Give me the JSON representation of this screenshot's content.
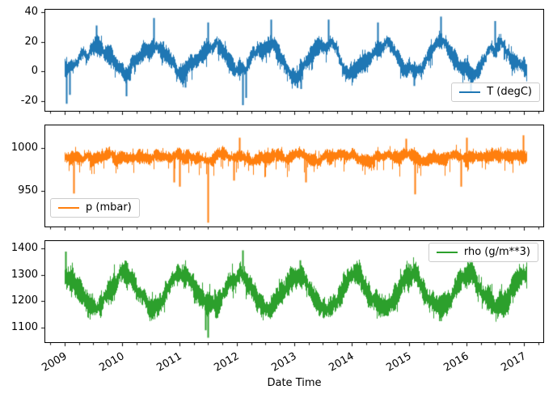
{
  "figure": {
    "background": "#ffffff"
  },
  "x_axis": {
    "label": "Date Time",
    "tick_years": [
      2009,
      2010,
      2011,
      2012,
      2013,
      2014,
      2015,
      2016,
      2017
    ],
    "range_years": [
      2008.65,
      2017.35
    ],
    "minor_tick_interval": 0.25
  },
  "chart_data": [
    {
      "type": "line",
      "name": "T (degC)",
      "color": "#1f77b4",
      "legend_position": "lower right",
      "yticks": [
        -20,
        0,
        20,
        40
      ],
      "ylim": [
        -26.8,
        42.2
      ],
      "x_data_range": [
        2009.0,
        2017.04
      ],
      "seasonal_monthly_mean": [
        -0.8,
        0.6,
        4.6,
        9.2,
        13.6,
        16.6,
        18.6,
        18.0,
        13.8,
        9.0,
        4.2,
        0.8
      ],
      "band_halfwidth": 6,
      "wander": 4,
      "extra_down": 6,
      "extra_up": 4,
      "extremes": {
        "min": -23,
        "max": 37
      },
      "events": [
        [
          2009.03,
          -22
        ],
        [
          2009.08,
          -16
        ],
        [
          2010.07,
          -17
        ],
        [
          2011.1,
          -11
        ],
        [
          2012.1,
          -23
        ],
        [
          2012.16,
          -18
        ],
        [
          2013.12,
          -12
        ],
        [
          2015.08,
          -10
        ],
        [
          2016.07,
          -14
        ],
        [
          2009.55,
          31
        ],
        [
          2010.55,
          36
        ],
        [
          2011.5,
          33
        ],
        [
          2012.6,
          35
        ],
        [
          2013.6,
          35
        ],
        [
          2014.45,
          33
        ],
        [
          2015.55,
          37
        ],
        [
          2016.5,
          34
        ]
      ]
    },
    {
      "type": "line",
      "name": "p (mbar)",
      "color": "#ff7f0e",
      "legend_position": "lower left",
      "yticks": [
        950,
        1000
      ],
      "ylim": [
        908.5,
        1027.4
      ],
      "x_data_range": [
        2009.0,
        2017.04
      ],
      "seasonal_monthly_mean": [
        990.5,
        989.5,
        988.5,
        988.0,
        987.5,
        988.0,
        988.5,
        989.0,
        990.0,
        990.0,
        989.5,
        990.5
      ],
      "band_halfwidth": 8,
      "wander": 4,
      "extra_down": 14,
      "extra_up": 6,
      "extremes": {
        "min": 913,
        "max": 1015
      },
      "events": [
        [
          2009.15,
          947
        ],
        [
          2010.9,
          960
        ],
        [
          2011.0,
          955
        ],
        [
          2011.5,
          913
        ],
        [
          2011.95,
          962
        ],
        [
          2013.2,
          960
        ],
        [
          2015.1,
          946
        ],
        [
          2015.9,
          955
        ],
        [
          2012.05,
          1012
        ],
        [
          2014.95,
          1011
        ],
        [
          2016.0,
          1012
        ],
        [
          2016.99,
          1015
        ]
      ]
    },
    {
      "type": "line",
      "name": "rho (g/m**3)",
      "color": "#2ca02c",
      "legend_position": "upper right",
      "yticks": [
        1100,
        1200,
        1300,
        1400
      ],
      "ylim": [
        1045,
        1431
      ],
      "x_data_range": [
        2009.0,
        2017.04
      ],
      "seasonal_monthly_mean": [
        1303,
        1294,
        1268,
        1236,
        1206,
        1186,
        1178,
        1183,
        1206,
        1236,
        1268,
        1294
      ],
      "band_halfwidth": 45,
      "wander": 16,
      "extra_down": 28,
      "extra_up": 30,
      "extremes": {
        "min": 1060,
        "max": 1393
      },
      "events": [
        [
          2009.02,
          1388
        ],
        [
          2010.08,
          1345
        ],
        [
          2011.05,
          1320
        ],
        [
          2012.1,
          1393
        ],
        [
          2013.1,
          1355
        ],
        [
          2014.05,
          1330
        ],
        [
          2015.02,
          1340
        ],
        [
          2016.03,
          1330
        ],
        [
          2016.99,
          1310
        ],
        [
          2011.45,
          1090
        ],
        [
          2011.5,
          1062
        ],
        [
          2015.55,
          1125
        ]
      ]
    }
  ]
}
